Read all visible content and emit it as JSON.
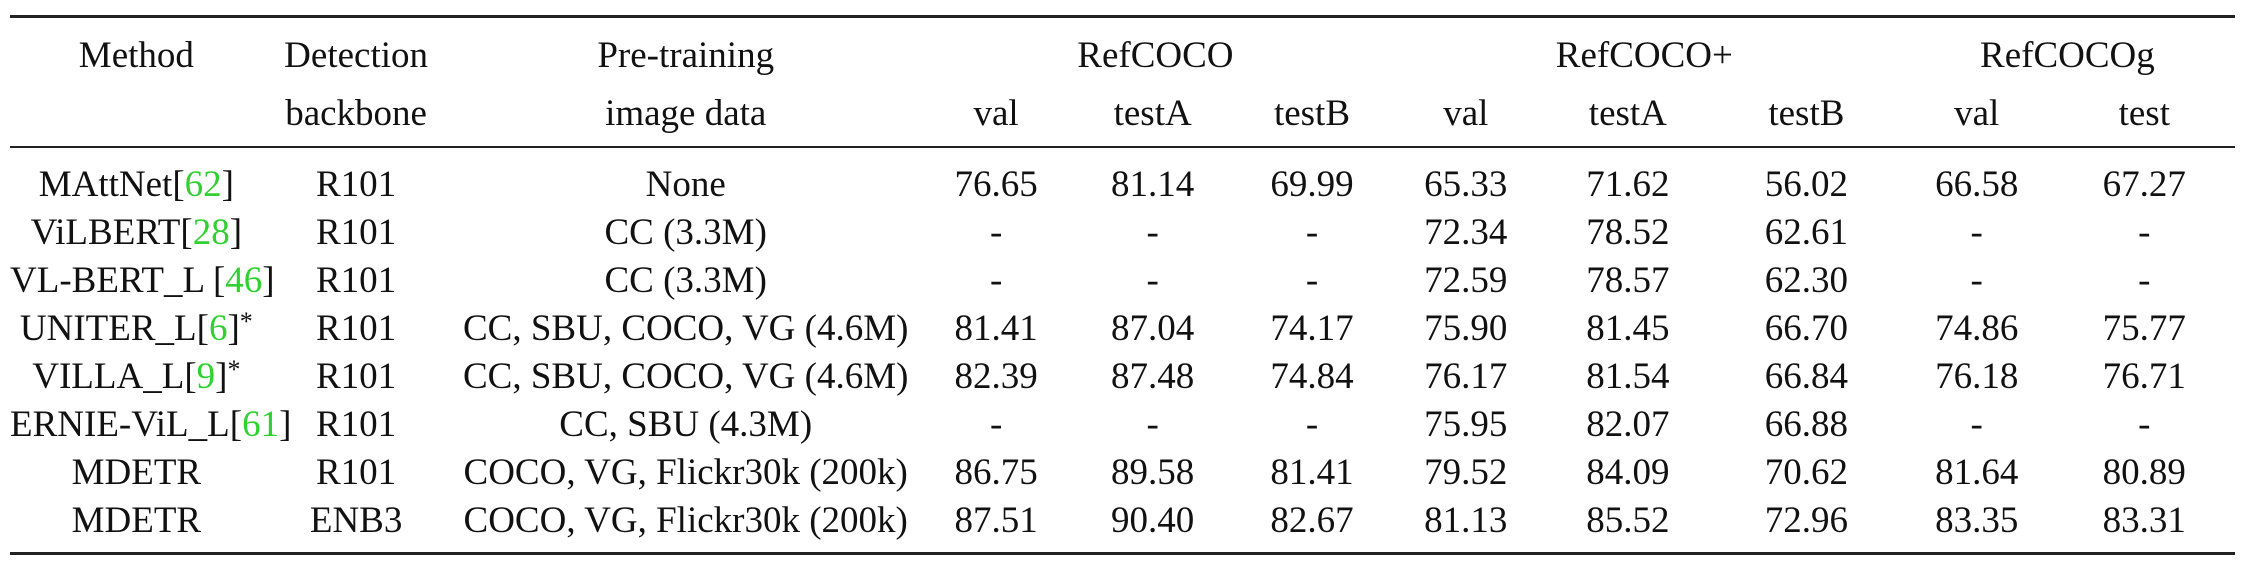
{
  "table": {
    "header1": {
      "method": "Method",
      "detection": "Detection",
      "pretraining": "Pre-training",
      "refcoco": "RefCOCO",
      "refcocoplus": "RefCOCO+",
      "refcocog": "RefCOCOg"
    },
    "header2": {
      "backbone": "backbone",
      "image_data": "image data",
      "rc_val": "val",
      "rc_testA": "testA",
      "rc_testB": "testB",
      "rcp_val": "val",
      "rcp_testA": "testA",
      "rcp_testB": "testB",
      "rcg_val": "val",
      "rcg_test": "test"
    },
    "rows": [
      {
        "method": "MAttNet",
        "cite": "62",
        "suffix": "",
        "star": "",
        "backbone": "R101",
        "data": "None",
        "values": [
          "76.65",
          "81.14",
          "69.99",
          "65.33",
          "71.62",
          "56.02",
          "66.58",
          "67.27"
        ]
      },
      {
        "method": "ViLBERT",
        "cite": "28",
        "suffix": "",
        "star": "",
        "backbone": "R101",
        "data": "CC (3.3M)",
        "values": [
          "-",
          "-",
          "-",
          "72.34",
          "78.52",
          "62.61",
          "-",
          "-"
        ]
      },
      {
        "method": "VL-BERT_L ",
        "cite": "46",
        "suffix": "",
        "star": "",
        "backbone": "R101",
        "data": "CC (3.3M)",
        "values": [
          "-",
          "-",
          "-",
          "72.59",
          "78.57",
          "62.30",
          "-",
          "-"
        ]
      },
      {
        "method": "UNITER_L",
        "cite": "6",
        "suffix": "",
        "star": "*",
        "backbone": "R101",
        "data": "CC, SBU, COCO, VG (4.6M)",
        "values": [
          "81.41",
          "87.04",
          "74.17",
          "75.90",
          "81.45",
          "66.70",
          "74.86",
          "75.77"
        ]
      },
      {
        "method": "VILLA_L",
        "cite": "9",
        "suffix": "",
        "star": "*",
        "backbone": "R101",
        "data": "CC, SBU, COCO, VG (4.6M)",
        "values": [
          "82.39",
          "87.48",
          "74.84",
          "76.17",
          "81.54",
          "66.84",
          "76.18",
          "76.71"
        ]
      },
      {
        "method": "ERNIE-ViL_L",
        "cite": "61",
        "suffix": "",
        "star": "",
        "backbone": "R101",
        "data": "CC, SBU (4.3M)",
        "values": [
          "-",
          "-",
          "-",
          "75.95",
          "82.07",
          "66.88",
          "-",
          "-"
        ]
      },
      {
        "method": "MDETR",
        "cite": "",
        "suffix": "",
        "star": "",
        "backbone": "R101",
        "data": "COCO, VG, Flickr30k (200k)",
        "values": [
          "86.75",
          "89.58",
          "81.41",
          "79.52",
          "84.09",
          "70.62",
          "81.64",
          "80.89"
        ]
      },
      {
        "method": "MDETR",
        "cite": "",
        "suffix": "",
        "star": "",
        "backbone": "ENB3",
        "data": "COCO, VG, Flickr30k (200k)",
        "values": [
          "87.51",
          "90.40",
          "82.67",
          "81.13",
          "85.52",
          "72.96",
          "83.35",
          "83.31"
        ]
      }
    ],
    "bold_rows": [
      6,
      7
    ],
    "colors": {
      "citation": "#2fd02f",
      "text": "#111111",
      "rule": "#222222"
    }
  }
}
